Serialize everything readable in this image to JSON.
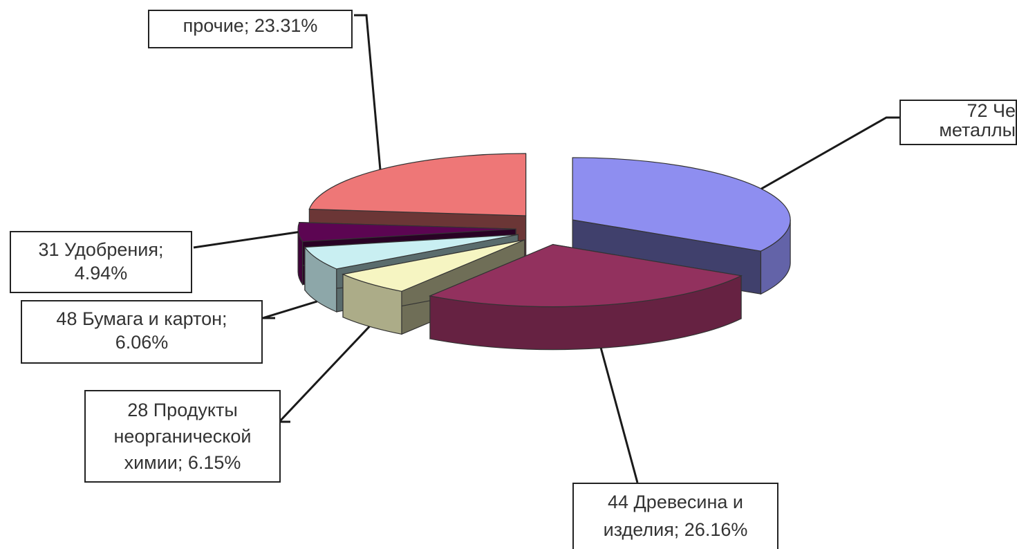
{
  "chart_data": {
    "type": "pie",
    "style": "3d-exploded",
    "title": "",
    "legend": "none",
    "slices": [
      {
        "label_lines": [
          "72 Че",
          "металлы"
        ],
        "value": 33.38,
        "color": "#8e8ef0",
        "id": "metals"
      },
      {
        "label_lines": [
          "44 Древесина и",
          "изделия; 26.16%"
        ],
        "value": 26.16,
        "color": "#92315e",
        "id": "wood"
      },
      {
        "label_lines": [
          "28 Продукты",
          "неорганической",
          "химии; 6.15%"
        ],
        "value": 6.15,
        "color": "#f6f5c2",
        "id": "inorganic"
      },
      {
        "label_lines": [
          "48 Бумага и картон;",
          "6.06%"
        ],
        "value": 6.06,
        "color": "#c9eff2",
        "id": "paper"
      },
      {
        "label_lines": [
          "31 Удобрения;",
          "4.94%"
        ],
        "value": 4.94,
        "color": "#5c0552",
        "id": "fertilizers"
      },
      {
        "label_lines": [
          "прочие; 23.31%"
        ],
        "value": 23.31,
        "color": "#ee7777",
        "id": "other"
      }
    ]
  }
}
